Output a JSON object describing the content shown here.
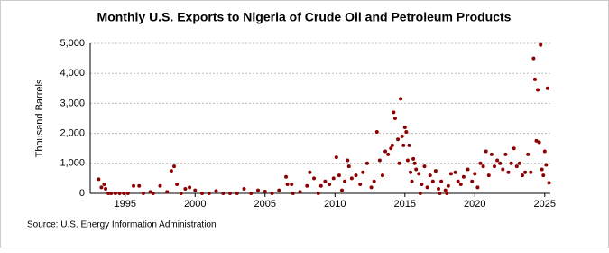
{
  "chart_data": {
    "type": "scatter",
    "title": "Monthly U.S. Exports to Nigeria of Crude Oil and Petroleum Products",
    "y_label": "Thousand Barrels",
    "source": "Source: U.S. Energy Information Administration",
    "color": "#8b0000",
    "grid": true,
    "xlim": [
      1992.5,
      2025.4
    ],
    "xticks": [
      1995,
      2000,
      2005,
      2010,
      2015,
      2020,
      2025
    ],
    "ylim": [
      0,
      5000
    ],
    "yticks": [
      0,
      {
        "value": 1000,
        "label": "1,000"
      },
      {
        "value": 2000,
        "label": "2,000"
      },
      {
        "value": 3000,
        "label": "3,000"
      },
      {
        "value": 4000,
        "label": "4,000"
      },
      {
        "value": 5000,
        "label": "5,000"
      }
    ],
    "x": [
      1993.1,
      1993.3,
      1993.5,
      1993.6,
      1993.8,
      1994.0,
      1994.3,
      1994.6,
      1994.9,
      1995.2,
      1995.6,
      1996.0,
      1996.3,
      1996.8,
      1997.0,
      1997.5,
      1998.0,
      1998.3,
      1998.5,
      1998.7,
      1999.0,
      1999.3,
      1999.6,
      2000.0,
      2000.5,
      2001.0,
      2001.5,
      2002.0,
      2002.5,
      2003.0,
      2003.5,
      2004.0,
      2004.5,
      2005.0,
      2005.5,
      2006.0,
      2006.5,
      2006.6,
      2006.9,
      2007.0,
      2007.5,
      2008.0,
      2008.2,
      2008.5,
      2008.8,
      2009.0,
      2009.3,
      2009.6,
      2009.9,
      2010.1,
      2010.3,
      2010.5,
      2010.7,
      2010.9,
      2011.0,
      2011.2,
      2011.5,
      2011.8,
      2012.0,
      2012.3,
      2012.6,
      2012.8,
      2013.0,
      2013.2,
      2013.4,
      2013.6,
      2013.8,
      2014.0,
      2014.1,
      2014.2,
      2014.3,
      2014.5,
      2014.6,
      2014.7,
      2014.8,
      2014.9,
      2015.0,
      2015.1,
      2015.2,
      2015.3,
      2015.4,
      2015.5,
      2015.6,
      2015.7,
      2015.8,
      2016.0,
      2016.1,
      2016.2,
      2016.4,
      2016.6,
      2016.8,
      2017.0,
      2017.2,
      2017.4,
      2017.5,
      2017.6,
      2017.9,
      2018.0,
      2018.1,
      2018.3,
      2018.6,
      2018.8,
      2019.0,
      2019.2,
      2019.5,
      2019.8,
      2020.0,
      2020.2,
      2020.4,
      2020.6,
      2020.8,
      2021.0,
      2021.2,
      2021.4,
      2021.6,
      2021.8,
      2022.0,
      2022.2,
      2022.4,
      2022.6,
      2022.8,
      2023.0,
      2023.2,
      2023.4,
      2023.6,
      2023.8,
      2024.0,
      2024.2,
      2024.3,
      2024.4,
      2024.5,
      2024.6,
      2024.7,
      2024.8,
      2024.9,
      2025.0,
      2025.1,
      2025.2,
      2025.3
    ],
    "values": [
      470,
      200,
      300,
      150,
      0,
      0,
      0,
      0,
      0,
      0,
      250,
      250,
      0,
      50,
      0,
      250,
      50,
      750,
      900,
      300,
      0,
      150,
      200,
      100,
      0,
      0,
      80,
      0,
      0,
      0,
      150,
      0,
      100,
      60,
      0,
      100,
      550,
      300,
      300,
      0,
      50,
      250,
      700,
      500,
      0,
      250,
      400,
      300,
      500,
      1200,
      600,
      100,
      400,
      1100,
      900,
      500,
      600,
      300,
      700,
      1000,
      200,
      400,
      2050,
      1100,
      600,
      1400,
      1300,
      1500,
      1600,
      2700,
      2500,
      1800,
      1000,
      3150,
      1900,
      1600,
      2200,
      2050,
      1100,
      1600,
      700,
      400,
      1150,
      1000,
      800,
      650,
      0,
      300,
      900,
      200,
      600,
      400,
      750,
      150,
      0,
      400,
      100,
      0,
      250,
      650,
      700,
      400,
      300,
      550,
      800,
      400,
      650,
      200,
      1000,
      900,
      1400,
      600,
      1300,
      900,
      1100,
      1000,
      800,
      1300,
      700,
      1000,
      1500,
      900,
      1000,
      600,
      700,
      1300,
      700,
      4500,
      3800,
      1750,
      3450,
      1700,
      4950,
      800,
      600,
      1400,
      950,
      3500,
      350
    ]
  }
}
